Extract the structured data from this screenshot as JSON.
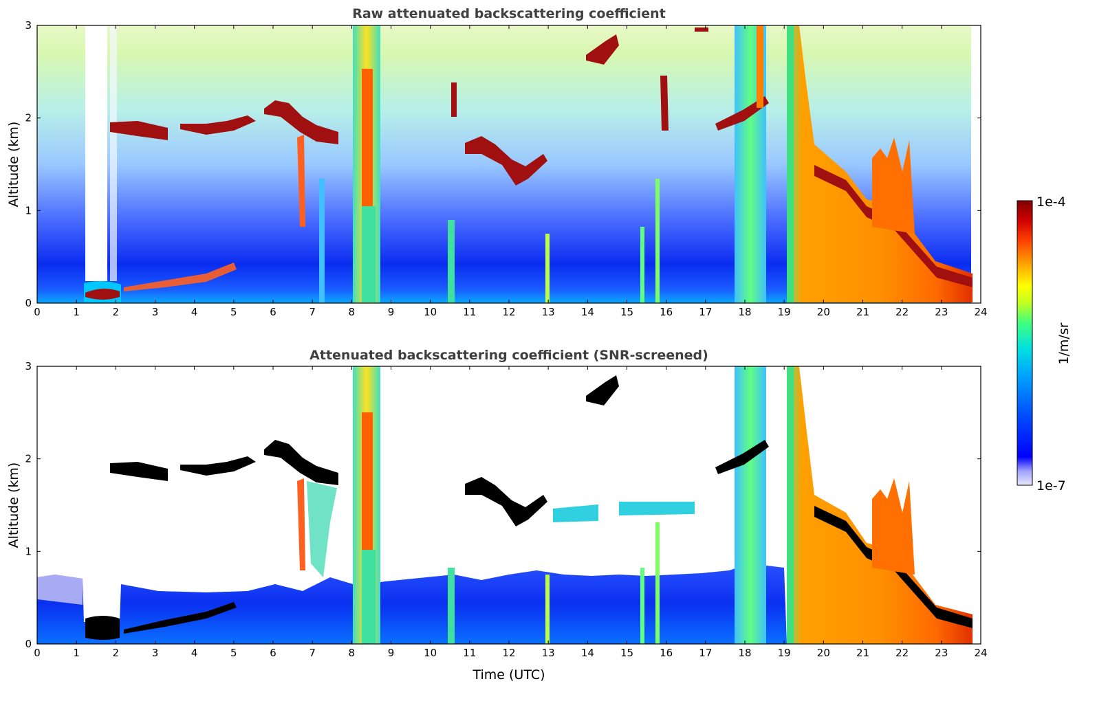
{
  "chart_data": [
    {
      "type": "heatmap",
      "title": "Raw attenuated backscattering coefficient",
      "xlabel": "",
      "ylabel": "Altitude (km)",
      "xlim": [
        0,
        24
      ],
      "ylim": [
        0,
        3
      ],
      "xticks": [
        "0",
        "1",
        "2",
        "3",
        "4",
        "5",
        "6",
        "7",
        "8",
        "9",
        "10",
        "11",
        "12",
        "13",
        "14",
        "15",
        "16",
        "17",
        "18",
        "19",
        "20",
        "21",
        "22",
        "23",
        "24"
      ],
      "yticks": [
        "0",
        "1",
        "2",
        "3"
      ],
      "screened": false,
      "features": [
        {
          "kind": "cloud_layer",
          "x": [
            1.25,
            2.1
          ],
          "z": 0.15
        },
        {
          "kind": "cloud_layer",
          "x": [
            2.0,
            3.3
          ],
          "z": 1.88
        },
        {
          "kind": "cloud_layer",
          "x": [
            3.6,
            5.3
          ],
          "z": 1.92
        },
        {
          "kind": "cloud_layer",
          "x": [
            5.8,
            7.7
          ],
          "z": 1.95
        },
        {
          "kind": "cloud_layer",
          "x": [
            2.5,
            5.0
          ],
          "z": 0.25
        },
        {
          "kind": "precip_shaft",
          "x": [
            8.1,
            8.9
          ],
          "z": [
            0,
            3
          ]
        },
        {
          "kind": "cloud_layer",
          "x": [
            10.9,
            13.0
          ],
          "z": 1.5
        },
        {
          "kind": "cloud_layer",
          "x": [
            14.0,
            15.3
          ],
          "z": 2.6
        },
        {
          "kind": "precip_shaft",
          "x": [
            17.9,
            18.8
          ],
          "z": [
            0,
            3
          ]
        },
        {
          "kind": "thick_cloud",
          "x": [
            19.1,
            23.8
          ],
          "z": [
            0,
            1.8
          ]
        }
      ]
    },
    {
      "type": "heatmap",
      "title": "Attenuated backscattering coefficient (SNR-screened)",
      "xlabel": "Time (UTC)",
      "ylabel": "Altitude (km)",
      "xlim": [
        0,
        24
      ],
      "ylim": [
        0,
        3
      ],
      "xticks": [
        "0",
        "1",
        "2",
        "3",
        "4",
        "5",
        "6",
        "7",
        "8",
        "9",
        "10",
        "11",
        "12",
        "13",
        "14",
        "15",
        "16",
        "17",
        "18",
        "19",
        "20",
        "21",
        "22",
        "23",
        "24"
      ],
      "yticks": [
        "0",
        "1",
        "2",
        "3"
      ],
      "screened": true
    }
  ],
  "colorbar": {
    "label": "1/m/sr",
    "max_label": "1e-4",
    "min_label": "1e-7",
    "scale": "log",
    "colors": [
      "#e8e8f8",
      "#a0a0ff",
      "#0000ff",
      "#0050ff",
      "#00a0ff",
      "#00e0e0",
      "#40ff80",
      "#c0ff20",
      "#ffff00",
      "#ffa000",
      "#ff4000",
      "#d00000",
      "#800000"
    ]
  }
}
